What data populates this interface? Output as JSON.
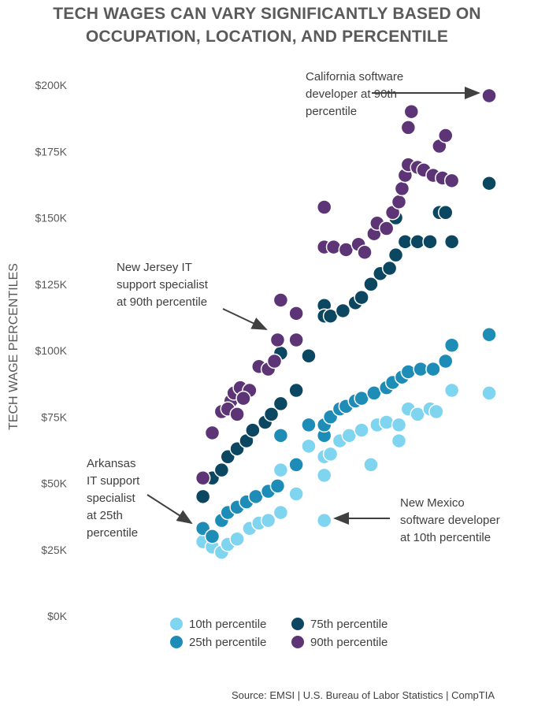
{
  "chart_data": {
    "type": "scatter",
    "title": [
      "TECH WAGES CAN VARY SIGNIFICANTLY BASED ON",
      "OCCUPATION, LOCATION, AND PERCENTILE"
    ],
    "xlabel": "",
    "ylabel": "TECH WAGE PERCENTILES",
    "ylim": [
      0,
      200
    ],
    "y_unit": "$K",
    "yticks": [
      "$0K",
      "$25K",
      "$50K",
      "$75K",
      "$100K",
      "$125K",
      "$150K",
      "$175K",
      "$200K"
    ],
    "grid": false,
    "legend_position": "bottom",
    "series": [
      {
        "name": "10th percentile",
        "color": "#7fd4f0",
        "points": [
          [
            7,
            28
          ],
          [
            10,
            26
          ],
          [
            13,
            24
          ],
          [
            15,
            27
          ],
          [
            18,
            29
          ],
          [
            22,
            33
          ],
          [
            25,
            35
          ],
          [
            28,
            36
          ],
          [
            32,
            39
          ],
          [
            32,
            55
          ],
          [
            37,
            46
          ],
          [
            41,
            64
          ],
          [
            46,
            53
          ],
          [
            46,
            60
          ],
          [
            48,
            61
          ],
          [
            51,
            66
          ],
          [
            54,
            68
          ],
          [
            58,
            70
          ],
          [
            61,
            57
          ],
          [
            63,
            72
          ],
          [
            66,
            73
          ],
          [
            70,
            72
          ],
          [
            70,
            66
          ],
          [
            73,
            78
          ],
          [
            76,
            76
          ],
          [
            80,
            78
          ],
          [
            82,
            77
          ],
          [
            87,
            85
          ],
          [
            99,
            84
          ],
          [
            46,
            36
          ]
        ]
      },
      {
        "name": "25th percentile",
        "color": "#1d8db8",
        "points": [
          [
            7,
            33
          ],
          [
            10,
            30
          ],
          [
            13,
            36
          ],
          [
            15,
            39
          ],
          [
            18,
            41
          ],
          [
            21,
            43
          ],
          [
            24,
            45
          ],
          [
            28,
            47
          ],
          [
            31,
            49
          ],
          [
            32,
            68
          ],
          [
            37,
            57
          ],
          [
            41,
            72
          ],
          [
            46,
            68
          ],
          [
            46,
            72
          ],
          [
            48,
            75
          ],
          [
            51,
            78
          ],
          [
            53,
            79
          ],
          [
            56,
            81
          ],
          [
            58,
            82
          ],
          [
            62,
            84
          ],
          [
            66,
            86
          ],
          [
            68,
            88
          ],
          [
            71,
            90
          ],
          [
            73,
            92
          ],
          [
            77,
            93
          ],
          [
            81,
            93
          ],
          [
            85,
            96
          ],
          [
            87,
            102
          ],
          [
            99,
            106
          ]
        ]
      },
      {
        "name": "75th percentile",
        "color": "#0b4761",
        "points": [
          [
            7,
            45
          ],
          [
            10,
            52
          ],
          [
            13,
            55
          ],
          [
            15,
            60
          ],
          [
            18,
            63
          ],
          [
            21,
            66
          ],
          [
            23,
            70
          ],
          [
            27,
            73
          ],
          [
            29,
            76
          ],
          [
            32,
            80
          ],
          [
            32,
            99
          ],
          [
            37,
            85
          ],
          [
            41,
            98
          ],
          [
            46,
            117
          ],
          [
            46,
            113
          ],
          [
            48,
            113
          ],
          [
            52,
            115
          ],
          [
            56,
            118
          ],
          [
            58,
            120
          ],
          [
            61,
            125
          ],
          [
            64,
            129
          ],
          [
            67,
            131
          ],
          [
            69,
            136
          ],
          [
            72,
            141
          ],
          [
            76,
            141
          ],
          [
            80,
            141
          ],
          [
            83,
            152
          ],
          [
            85,
            152
          ],
          [
            87,
            141
          ],
          [
            99,
            163
          ],
          [
            69,
            150
          ]
        ]
      },
      {
        "name": "90th percentile",
        "color": "#5d3577",
        "points": [
          [
            7,
            52
          ],
          [
            10,
            69
          ],
          [
            13,
            77
          ],
          [
            16,
            81
          ],
          [
            17,
            84
          ],
          [
            19,
            86
          ],
          [
            22,
            85
          ],
          [
            25,
            94
          ],
          [
            28,
            93
          ],
          [
            30,
            96
          ],
          [
            31,
            104
          ],
          [
            32,
            119
          ],
          [
            37,
            114
          ],
          [
            37,
            104
          ],
          [
            46,
            154
          ],
          [
            46,
            139
          ],
          [
            49,
            139
          ],
          [
            53,
            138
          ],
          [
            57,
            140
          ],
          [
            59,
            137
          ],
          [
            62,
            144
          ],
          [
            63,
            148
          ],
          [
            66,
            146
          ],
          [
            68,
            152
          ],
          [
            70,
            156
          ],
          [
            71,
            161
          ],
          [
            72,
            166
          ],
          [
            73,
            170
          ],
          [
            76,
            169
          ],
          [
            78,
            168
          ],
          [
            81,
            166
          ],
          [
            84,
            165
          ],
          [
            87,
            164
          ],
          [
            73,
            184
          ],
          [
            74,
            190
          ],
          [
            83,
            177
          ],
          [
            85,
            181
          ],
          [
            99,
            196
          ],
          [
            15,
            78
          ],
          [
            18,
            76
          ],
          [
            20,
            82
          ]
        ]
      }
    ],
    "annotations": [
      {
        "lines": [
          "California software",
          "developer at 90th",
          "percentile"
        ]
      },
      {
        "lines": [
          "New Jersey IT",
          "support specialist",
          "at 90th percentile"
        ]
      },
      {
        "lines": [
          "Arkansas",
          "IT support",
          "specialist",
          "at 25th",
          "percentile"
        ]
      },
      {
        "lines": [
          "New Mexico",
          "software developer",
          "at 10th percentile"
        ]
      }
    ]
  },
  "source": "Source: EMSI | U.S. Bureau of Labor Statistics | CompTIA"
}
